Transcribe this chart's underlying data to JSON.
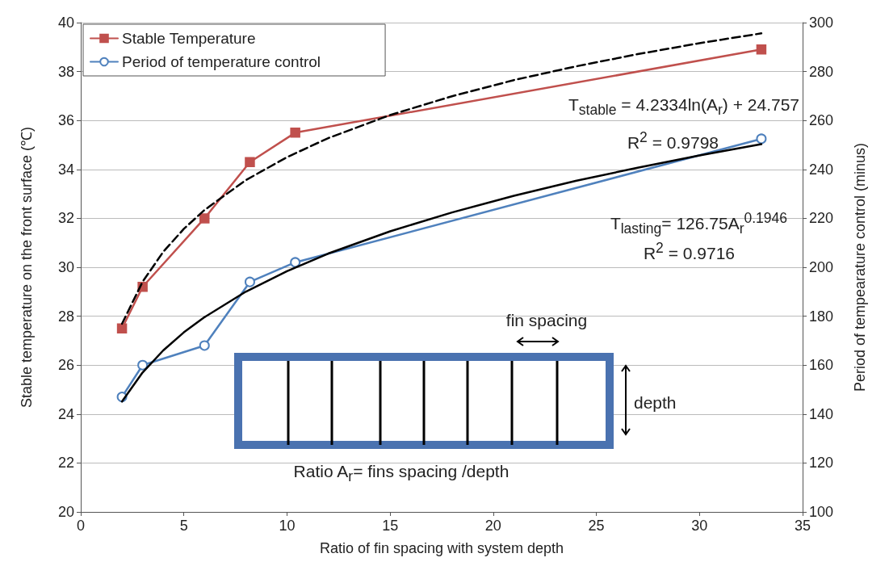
{
  "chart_data": {
    "type": "line",
    "xlabel": "Ratio of fin spacing with system depth",
    "ylabel": "Stable temperature on the front surface (℃)",
    "y2label": "Period of tempearature control (minus)",
    "xlim": [
      0,
      35
    ],
    "xticks": [
      0,
      5,
      10,
      15,
      20,
      25,
      30,
      35
    ],
    "ylim": [
      20,
      40
    ],
    "yticks": [
      20,
      22,
      24,
      26,
      28,
      30,
      32,
      34,
      36,
      38,
      40
    ],
    "y2lim": [
      100,
      300
    ],
    "y2ticks": [
      100,
      120,
      140,
      160,
      180,
      200,
      220,
      240,
      260,
      280,
      300
    ],
    "grid": "y",
    "legend": "top left",
    "series": [
      {
        "name": "Stable Temperature",
        "color": "#c0504d",
        "marker": "square",
        "x": [
          2,
          3,
          6,
          8.2,
          10.4,
          33
        ],
        "values": [
          27.5,
          29.2,
          32.0,
          34.3,
          35.5,
          38.9
        ]
      },
      {
        "name": "Period of temperature control",
        "color": "#4f81bd",
        "marker": "circle",
        "axis": "y2",
        "x": [
          2,
          3,
          6,
          8.2,
          10.4,
          33
        ],
        "values": [
          147,
          160,
          168,
          194,
          202,
          252.5
        ]
      },
      {
        "color": "#000000",
        "marker": "none",
        "line_style": "dashed",
        "x": [
          2,
          3,
          4,
          5,
          6,
          8,
          10,
          12,
          15,
          18,
          21,
          24,
          27,
          30,
          33
        ],
        "values": [
          27.69,
          29.41,
          30.63,
          31.57,
          32.34,
          33.56,
          34.5,
          35.28,
          36.22,
          36.99,
          37.65,
          38.21,
          38.71,
          39.16,
          39.56
        ]
      },
      {
        "color": "#000000",
        "marker": "none",
        "axis": "y2",
        "x": [
          2,
          3,
          4,
          5,
          6,
          8,
          10,
          12,
          15,
          18,
          21,
          24,
          27,
          30,
          33
        ],
        "values": [
          145.1,
          157.0,
          166.0,
          173.4,
          179.6,
          190.0,
          198.4,
          205.6,
          214.7,
          222.4,
          229.2,
          235.3,
          240.7,
          245.7,
          250.3
        ]
      }
    ],
    "annotations": [
      "T$_{stable}$ = 4.2334ln(A$_{r}$) + 24.757",
      "R$^{2}$ = 0.9798",
      "T$_{lasting}$= 126.75A$_{r}$$^{0.1946}$",
      "R$^{2}$ = 0.9716",
      "fin spacing",
      "depth",
      "Ratio A$_{r}$= fins spacing /depth"
    ]
  }
}
